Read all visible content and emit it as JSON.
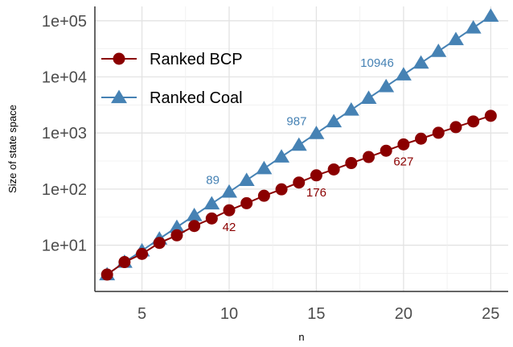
{
  "chart_data": {
    "type": "line",
    "xlabel": "n",
    "ylabel": "Size of state space",
    "y_scale": "log10",
    "xlim": [
      2.3,
      26.0
    ],
    "ylim": [
      1.5,
      180000
    ],
    "x_ticks": [
      5,
      10,
      15,
      20,
      25
    ],
    "x_tick_labels": [
      "5",
      "10",
      "15",
      "20",
      "25"
    ],
    "y_ticks": [
      10,
      100,
      1000,
      10000,
      100000
    ],
    "y_tick_labels": [
      "1e+01",
      "1e+02",
      "1e+03",
      "1e+04",
      "1e+05"
    ],
    "grid": true,
    "legend_position": "top-left",
    "x": [
      3,
      4,
      5,
      6,
      7,
      8,
      9,
      10,
      11,
      12,
      13,
      14,
      15,
      16,
      17,
      18,
      19,
      20,
      21,
      22,
      23,
      24,
      25
    ],
    "series": [
      {
        "name": "Ranked BCP",
        "marker": "circle",
        "color": "#8B0000",
        "values": [
          3,
          5,
          7,
          11,
          15,
          22,
          30,
          42,
          56,
          76,
          99,
          131,
          176,
          224,
          291,
          373,
          483,
          627,
          792,
          1009,
          1272,
          1605,
          2024
        ]
      },
      {
        "name": "Ranked Coal",
        "marker": "triangle",
        "color": "#4682B4",
        "values": [
          3,
          5,
          8,
          13,
          21,
          34,
          55,
          89,
          144,
          233,
          377,
          610,
          987,
          1597,
          2584,
          4181,
          6765,
          10946,
          17711,
          28657,
          46368,
          75025,
          121393
        ]
      }
    ],
    "annotations": [
      {
        "series": 0,
        "x": 10,
        "text": "42"
      },
      {
        "series": 0,
        "x": 15,
        "text": "176"
      },
      {
        "series": 0,
        "x": 20,
        "text": "627"
      },
      {
        "series": 1,
        "x": 10,
        "text": "89"
      },
      {
        "series": 1,
        "x": 15,
        "text": "987"
      },
      {
        "series": 1,
        "x": 20,
        "text": "10946"
      }
    ]
  }
}
